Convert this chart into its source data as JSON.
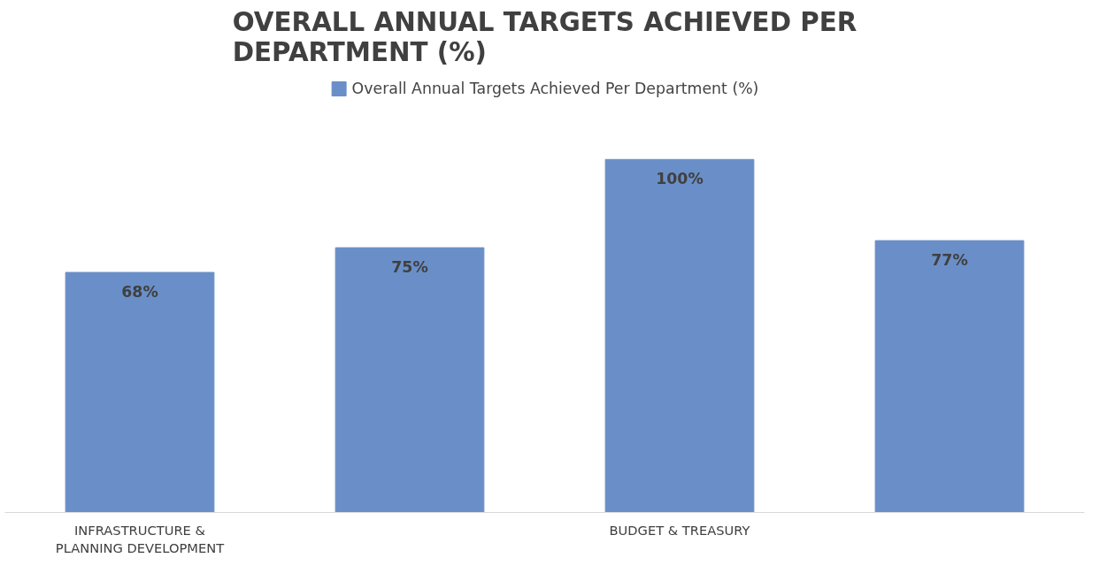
{
  "chart_data": {
    "type": "bar",
    "title": "OVERALL ANNUAL TARGETS ACHIEVED PER DEPARTMENT (%)",
    "categories": [
      "INFRASTRUCTURE & PLANNING DEVELOPMENT",
      null,
      "BUDGET & TREASURY",
      null
    ],
    "series": [
      {
        "name": "Overall Annual Targets Achieved Per Department (%)",
        "color": "#6a8fc8",
        "values": [
          68,
          75,
          100,
          77
        ],
        "value_labels": [
          "68%",
          "75%",
          "100%",
          "77%"
        ]
      }
    ],
    "legend": "top",
    "tick_labels": "x"
  }
}
